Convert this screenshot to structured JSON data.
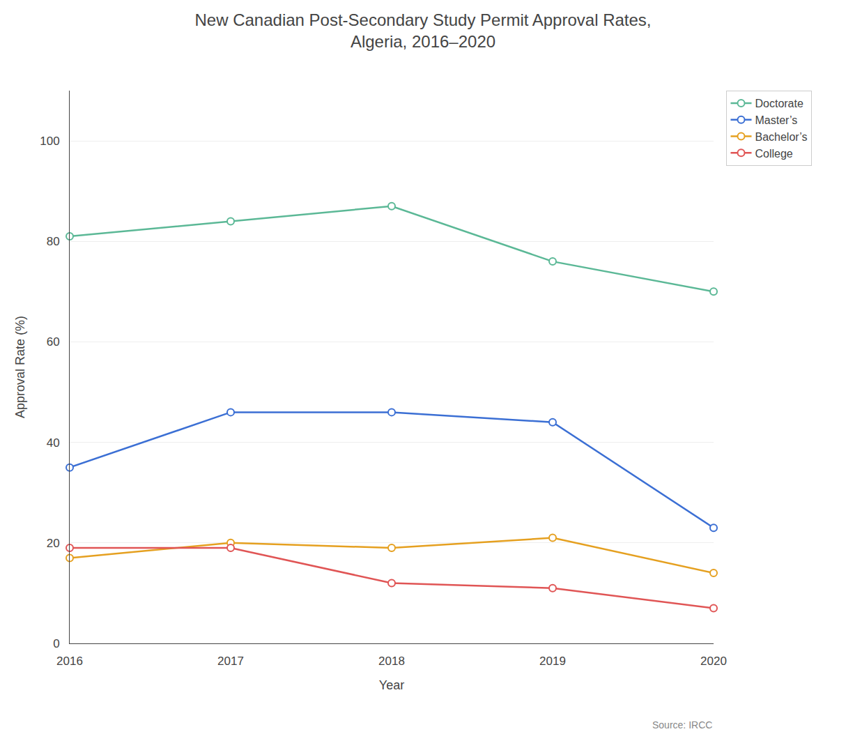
{
  "chart_data": {
    "type": "line",
    "title": "New Canadian Post-Secondary Study Permit Approval Rates,\nAlgeria, 2016–2020",
    "xlabel": "Year",
    "ylabel": "Approval Rate (%)",
    "x": [
      2016,
      2017,
      2018,
      2019,
      2020
    ],
    "series": [
      {
        "name": "Doctorate",
        "color": "#5BB896",
        "marker": "circle",
        "values": [
          81,
          84,
          87,
          76,
          70
        ]
      },
      {
        "name": "Master’s",
        "color": "#3B6FD4",
        "marker": "circle",
        "values": [
          35,
          46,
          46,
          44,
          23
        ]
      },
      {
        "name": "Bachelor’s",
        "color": "#E5A020",
        "marker": "circle",
        "values": [
          17,
          20,
          19,
          21,
          14
        ]
      },
      {
        "name": "College",
        "color": "#E05555",
        "marker": "circle",
        "values": [
          19,
          19,
          12,
          11,
          7
        ]
      }
    ],
    "xlim": [
      2016,
      2020
    ],
    "xticks": [
      2016,
      2017,
      2018,
      2019,
      2020
    ],
    "ylim": [
      0,
      110
    ],
    "yticks": [
      0,
      20,
      40,
      60,
      80,
      100
    ],
    "grid": "y",
    "legend": "right",
    "annotations": [
      "Source: IRCC"
    ]
  }
}
